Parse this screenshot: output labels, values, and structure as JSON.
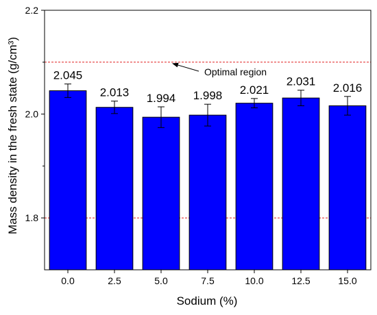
{
  "chart_data": {
    "type": "bar",
    "categories": [
      "0.0",
      "2.5",
      "5.0",
      "7.5",
      "10.0",
      "12.5",
      "15.0"
    ],
    "values": [
      2.045,
      2.013,
      1.994,
      1.998,
      2.021,
      2.031,
      2.016
    ],
    "errors": [
      0.013,
      0.012,
      0.02,
      0.021,
      0.009,
      0.015,
      0.018
    ],
    "data_labels": [
      "2.045",
      "2.013",
      "1.994",
      "1.998",
      "2.021",
      "2.031",
      "2.016"
    ],
    "xlabel": "Sodium (%)",
    "ylabel": "Mass density in the fresh state (g/cm³)",
    "ylim": [
      1.7,
      2.2
    ],
    "yticks": [
      1.8,
      2.0,
      2.2
    ],
    "ytick_labels": [
      "1.8",
      "2.0",
      "2.2"
    ],
    "reference_lines": [
      {
        "value": 2.1,
        "style": "dashed",
        "color": "#e02020"
      },
      {
        "value": 1.8,
        "style": "dashed",
        "color": "#e02020"
      }
    ],
    "annotation": {
      "text": "Optimal region",
      "points_to": 2.1
    },
    "bar_color": "#0000ff",
    "bar_edge_color": "#000000",
    "grid": false,
    "legend": "none"
  }
}
